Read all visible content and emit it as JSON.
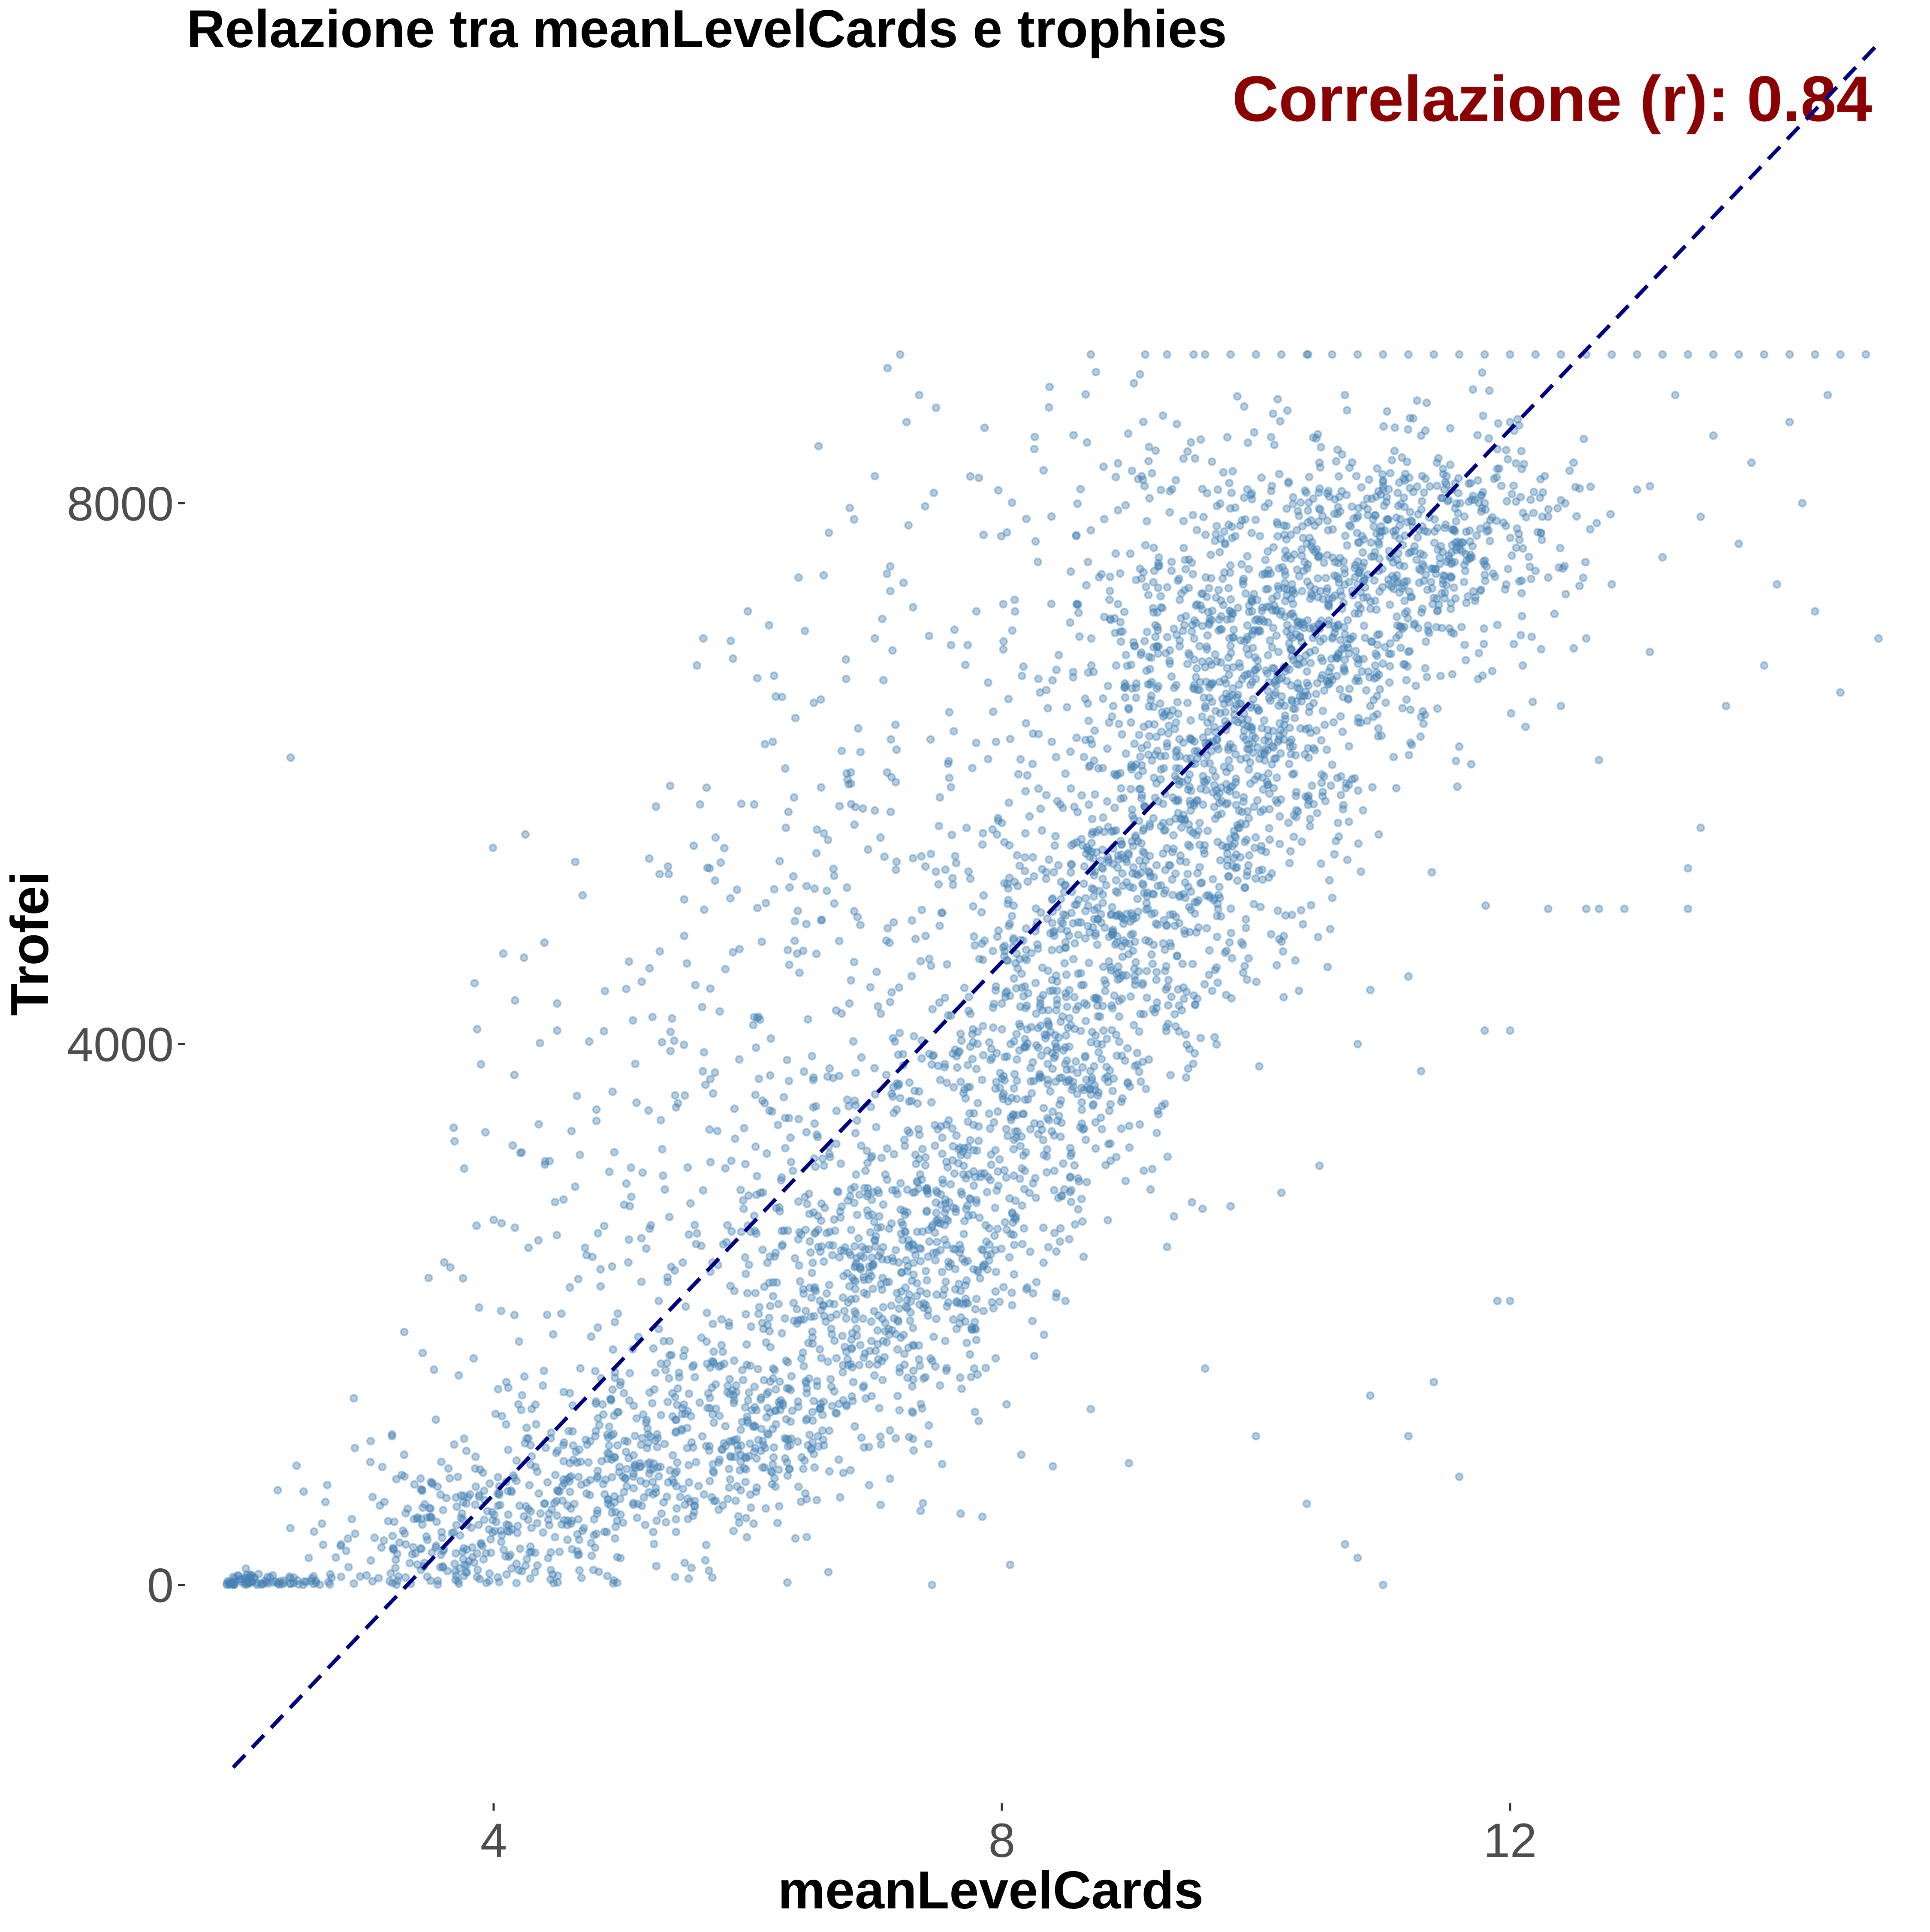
{
  "chart_data": {
    "type": "scatter",
    "title": "Relazione tra meanLevelCards e trophies",
    "xlabel": "meanLevelCards",
    "ylabel": "Trofei",
    "annotation": "Correlazione (r): 0.84",
    "xlim": [
      1.6,
      14.9
    ],
    "ylim": [
      -1600,
      11500
    ],
    "x_ticks": [
      4,
      8,
      12
    ],
    "y_ticks": [
      0,
      4000,
      8000
    ],
    "x_tick_labels": [
      "4",
      "8",
      "12"
    ],
    "y_tick_labels": [
      "0",
      "4000",
      "8000"
    ],
    "grid": false,
    "point_color": "#4682B4",
    "point_alpha": 0.4,
    "line_color": "#000080",
    "annotation_color": "#8B0000",
    "series": [
      {
        "type": "points",
        "points": [
          [
            1.9,
            0
          ],
          [
            1.95,
            60
          ],
          [
            2.0,
            40
          ],
          [
            2.05,
            120
          ],
          [
            2.1,
            20
          ],
          [
            2.15,
            80
          ],
          [
            2.2,
            30
          ],
          [
            2.3,
            10
          ],
          [
            2.4,
            50
          ],
          [
            2.5,
            0
          ],
          [
            2.6,
            30
          ],
          [
            2.7,
            20
          ],
          [
            2.8,
            60
          ],
          [
            2.9,
            10
          ],
          [
            3.0,
            70
          ],
          [
            2.3,
            700
          ],
          [
            2.4,
            420
          ],
          [
            2.8,
            300
          ],
          [
            2.9,
            1380
          ],
          [
            3.2,
            1100
          ],
          [
            3.3,
            380
          ],
          [
            3.4,
            150
          ],
          [
            3.5,
            500
          ],
          [
            3.6,
            250
          ],
          [
            3.7,
            100
          ],
          [
            3.8,
            650
          ],
          [
            3.9,
            300
          ],
          [
            3.85,
            4450
          ],
          [
            3.9,
            3850
          ],
          [
            4.0,
            2700
          ],
          [
            4.1,
            1500
          ],
          [
            4.15,
            3250
          ],
          [
            4.2,
            1800
          ],
          [
            4.25,
            5550
          ],
          [
            4.3,
            950
          ],
          [
            4.4,
            4750
          ],
          [
            4.5,
            4300
          ],
          [
            4.5,
            4100
          ],
          [
            4.55,
            2850
          ],
          [
            4.6,
            2200
          ],
          [
            4.7,
            5100
          ],
          [
            4.3,
            1300
          ],
          [
            4.4,
            600
          ],
          [
            4.5,
            700
          ],
          [
            4.6,
            900
          ],
          [
            4.7,
            400
          ],
          [
            4.8,
            1100
          ],
          [
            4.9,
            600
          ],
          [
            5.0,
            1500
          ],
          [
            4.95,
            3200
          ],
          [
            5.1,
            800
          ],
          [
            5.2,
            1200
          ],
          [
            5.25,
            4200
          ],
          [
            5.3,
            2100
          ],
          [
            5.4,
            1700
          ],
          [
            5.5,
            4800
          ],
          [
            5.6,
            2600
          ],
          [
            5.6,
            6800
          ],
          [
            5.65,
            7000
          ],
          [
            5.7,
            5300
          ],
          [
            5.8,
            1000
          ],
          [
            5.9,
            3300
          ],
          [
            6.0,
            1200
          ],
          [
            6.0,
            7200
          ],
          [
            6.05,
            4200
          ],
          [
            6.1,
            2900
          ],
          [
            6.2,
            1600
          ],
          [
            6.3,
            5600
          ],
          [
            6.4,
            7450
          ],
          [
            6.5,
            1000
          ],
          [
            6.6,
            3100
          ],
          [
            6.7,
            2000
          ],
          [
            6.8,
            4300
          ],
          [
            6.9,
            2500
          ],
          [
            7.0,
            7000
          ],
          [
            7.0,
            8200
          ],
          [
            7.1,
            9000
          ],
          [
            7.2,
            3600
          ],
          [
            7.25,
            8600
          ],
          [
            7.3,
            1900
          ],
          [
            7.35,
            8800
          ],
          [
            7.4,
            4800
          ],
          [
            7.45,
            0
          ],
          [
            7.5,
            2700
          ],
          [
            7.6,
            5900
          ],
          [
            7.7,
            3100
          ],
          [
            7.8,
            7200
          ],
          [
            7.9,
            2400
          ],
          [
            8.0,
            4300
          ],
          [
            8.1,
            5200
          ],
          [
            8.2,
            2200
          ],
          [
            8.3,
            6600
          ],
          [
            8.4,
            3500
          ],
          [
            8.5,
            6000
          ],
          [
            8.6,
            4900
          ],
          [
            8.7,
            7800
          ],
          [
            8.8,
            4100
          ],
          [
            8.9,
            6800
          ],
          [
            9.0,
            5400
          ],
          [
            9.1,
            8200
          ],
          [
            9.2,
            7500
          ],
          [
            9.3,
            6200
          ],
          [
            9.4,
            5100
          ],
          [
            9.5,
            7100
          ],
          [
            9.6,
            6500
          ],
          [
            9.7,
            8100
          ],
          [
            9.8,
            5900
          ],
          [
            9.9,
            7400
          ],
          [
            10.0,
            6700
          ],
          [
            10.1,
            8000
          ],
          [
            10.2,
            7200
          ],
          [
            10.3,
            6000
          ],
          [
            10.4,
            7700
          ],
          [
            10.5,
            8300
          ],
          [
            10.6,
            7000
          ],
          [
            10.7,
            8800
          ],
          [
            10.8,
            7400
          ],
          [
            10.9,
            6500
          ],
          [
            11.0,
            8100
          ],
          [
            11.1,
            7800
          ],
          [
            11.2,
            6900
          ],
          [
            11.3,
            8500
          ],
          [
            11.4,
            7300
          ],
          [
            11.5,
            8200
          ],
          [
            11.6,
            6200
          ],
          [
            11.7,
            7600
          ],
          [
            11.8,
            8000
          ],
          [
            11.9,
            7100
          ],
          [
            12.0,
            8600
          ],
          [
            12.1,
            6800
          ],
          [
            12.2,
            7500
          ],
          [
            12.3,
            7900
          ],
          [
            12.4,
            6500
          ],
          [
            12.5,
            8300
          ],
          [
            12.6,
            7000
          ],
          [
            12.7,
            6100
          ],
          [
            12.8,
            7400
          ],
          [
            12.9,
            5000
          ],
          [
            13.0,
            8100
          ],
          [
            13.1,
            6900
          ],
          [
            13.2,
            7600
          ],
          [
            13.3,
            8800
          ],
          [
            13.4,
            5300
          ],
          [
            13.5,
            7900
          ],
          [
            13.6,
            8500
          ],
          [
            13.7,
            6500
          ],
          [
            13.8,
            7700
          ],
          [
            13.9,
            8300
          ],
          [
            14.0,
            6800
          ],
          [
            14.1,
            7400
          ],
          [
            14.2,
            8600
          ],
          [
            14.3,
            8000
          ],
          [
            14.4,
            7200
          ],
          [
            14.5,
            8800
          ],
          [
            14.6,
            6600
          ],
          [
            14.9,
            7000
          ],
          [
            7.2,
            9100
          ],
          [
            8.7,
            9100
          ],
          [
            9.3,
            9100
          ],
          [
            9.6,
            9100
          ],
          [
            9.8,
            9100
          ],
          [
            10.0,
            9100
          ],
          [
            10.2,
            9100
          ],
          [
            10.4,
            9100
          ],
          [
            10.6,
            9100
          ],
          [
            10.8,
            9100
          ],
          [
            11.0,
            9100
          ],
          [
            11.2,
            9100
          ],
          [
            11.4,
            9100
          ],
          [
            11.6,
            9100
          ],
          [
            11.8,
            9100
          ],
          [
            12.0,
            9100
          ],
          [
            12.2,
            9100
          ],
          [
            12.4,
            9100
          ],
          [
            12.6,
            9100
          ],
          [
            12.8,
            9100
          ],
          [
            13.0,
            9100
          ],
          [
            13.2,
            9100
          ],
          [
            13.4,
            9100
          ],
          [
            13.6,
            9100
          ],
          [
            13.8,
            9100
          ],
          [
            14.0,
            9100
          ],
          [
            14.2,
            9100
          ],
          [
            14.4,
            9100
          ],
          [
            14.6,
            9100
          ],
          [
            14.8,
            9100
          ],
          [
            8.5,
            2100
          ],
          [
            8.7,
            1300
          ],
          [
            9.0,
            900
          ],
          [
            9.3,
            2500
          ],
          [
            9.6,
            1600
          ],
          [
            9.8,
            2800
          ],
          [
            10.0,
            1100
          ],
          [
            10.2,
            2900
          ],
          [
            10.4,
            600
          ],
          [
            10.5,
            3100
          ],
          [
            10.7,
            300
          ],
          [
            10.8,
            200
          ],
          [
            10.9,
            1400
          ],
          [
            11.0,
            0
          ],
          [
            11.2,
            1100
          ],
          [
            11.4,
            1500
          ],
          [
            11.6,
            800
          ],
          [
            12.0,
            2100
          ],
          [
            11.9,
            2100
          ],
          [
            11.8,
            4100
          ],
          [
            12.0,
            4100
          ],
          [
            10.8,
            4000
          ],
          [
            10.9,
            4400
          ],
          [
            11.2,
            4500
          ],
          [
            11.3,
            3800
          ],
          [
            12.3,
            5000
          ],
          [
            12.6,
            5000
          ],
          [
            12.7,
            5000
          ],
          [
            13.4,
            5000
          ],
          [
            13.5,
            5600
          ]
        ]
      },
      {
        "type": "clusters",
        "description": "dense point clouds along the trend",
        "clusters": [
          [
            2.2,
            20,
            0.35,
            40,
            70
          ],
          [
            3.6,
            350,
            0.45,
            260,
            200
          ],
          [
            4.7,
            650,
            0.5,
            330,
            240
          ],
          [
            5.9,
            1150,
            0.55,
            380,
            280
          ],
          [
            6.9,
            2100,
            0.55,
            480,
            320
          ],
          [
            7.6,
            2750,
            0.5,
            500,
            300
          ],
          [
            8.3,
            3800,
            0.55,
            550,
            320
          ],
          [
            8.9,
            4800,
            0.55,
            580,
            340
          ],
          [
            9.4,
            5600,
            0.6,
            580,
            360
          ],
          [
            9.9,
            6300,
            0.6,
            560,
            360
          ],
          [
            10.4,
            7000,
            0.6,
            480,
            360
          ],
          [
            10.9,
            7600,
            0.6,
            420,
            320
          ],
          [
            11.5,
            7900,
            0.6,
            380,
            220
          ],
          [
            7.2,
            5200,
            1.0,
            1200,
            260
          ],
          [
            6.2,
            3000,
            1.0,
            1200,
            220
          ],
          [
            5.2,
            2000,
            0.9,
            1100,
            160
          ],
          [
            9.3,
            7700,
            0.8,
            700,
            200
          ]
        ]
      },
      {
        "type": "line",
        "x": [
          1.95,
          14.9
        ],
        "y": [
          -1350,
          11400
        ],
        "style": "dashed"
      }
    ]
  }
}
